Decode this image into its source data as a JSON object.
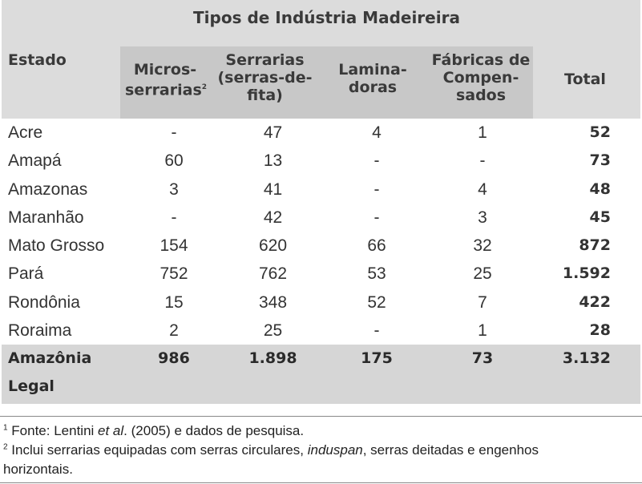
{
  "table": {
    "group_title": "Tipos de Indústria Madeireira",
    "headers": {
      "state": "Estado",
      "micro": "Micros-\nserrarias",
      "micro_ref": "2",
      "serrarias": "Serrarias\n(serras-de-\nfita)",
      "laminadoras": "Lamina-\ndoras",
      "fabricas": "Fábricas de\nCompen-\nsados",
      "total": "Total"
    },
    "rows": [
      {
        "state": "Acre",
        "micro": "-",
        "serrarias": "47",
        "laminadoras": "4",
        "fabricas": "1",
        "total": "52"
      },
      {
        "state": "Amapá",
        "micro": "60",
        "serrarias": "13",
        "laminadoras": "-",
        "fabricas": "-",
        "total": "73"
      },
      {
        "state": "Amazonas",
        "micro": "3",
        "serrarias": "41",
        "laminadoras": "-",
        "fabricas": "4",
        "total": "48"
      },
      {
        "state": "Maranhão",
        "micro": "-",
        "serrarias": "42",
        "laminadoras": "-",
        "fabricas": "3",
        "total": "45"
      },
      {
        "state": "Mato Grosso",
        "micro": "154",
        "serrarias": "620",
        "laminadoras": "66",
        "fabricas": "32",
        "total": "872"
      },
      {
        "state": "Pará",
        "micro": "752",
        "serrarias": "762",
        "laminadoras": "53",
        "fabricas": "25",
        "total": "1.592"
      },
      {
        "state": "Rondônia",
        "micro": "15",
        "serrarias": "348",
        "laminadoras": "52",
        "fabricas": "7",
        "total": "422"
      },
      {
        "state": "Roraima",
        "micro": "2",
        "serrarias": "25",
        "laminadoras": "-",
        "fabricas": "1",
        "total": "28"
      }
    ],
    "footer": {
      "state_line1": "Amazônia",
      "state_line2": "Legal",
      "micro": "986",
      "serrarias": "1.898",
      "laminadoras": "175",
      "fabricas": "73",
      "total": "3.132"
    }
  },
  "notes": {
    "n1_mark": "1",
    "n1_a": " Fonte: Lentini ",
    "n1_italic": "et al",
    "n1_b": ". (2005) e dados de pesquisa.",
    "n2_mark": "2",
    "n2_a": " Inclui serrarias equipadas com serras circulares, ",
    "n2_italic": "induspan",
    "n2_b": ", serras deitadas e engenhos",
    "n2_line2": "horizontais."
  }
}
